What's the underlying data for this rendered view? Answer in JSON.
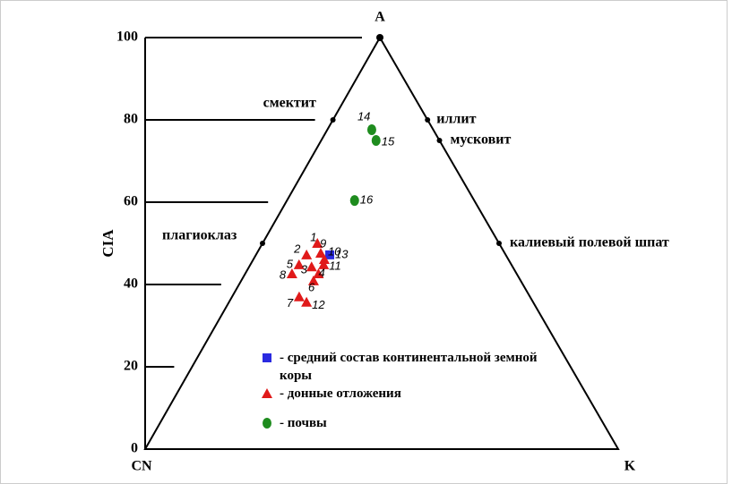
{
  "chart_data": {
    "type": "ternary",
    "vertex_labels": {
      "A": "A",
      "CN": "CN",
      "K": "K"
    },
    "ylabel": "CIA",
    "ylim": [
      0,
      100
    ],
    "yticks": [
      0,
      20,
      40,
      60,
      80,
      100
    ],
    "minerals": [
      {
        "name": "смектит",
        "A": 80,
        "K": 0
      },
      {
        "name": "иллит",
        "A": 80,
        "K": 20
      },
      {
        "name": "мусковит",
        "A": 75,
        "K": 25
      },
      {
        "name": "калиевый полевой шпат",
        "A": 50,
        "K": 50
      },
      {
        "name": "плагиоклаз",
        "A": 50,
        "K": 0
      }
    ],
    "series": [
      {
        "name": "- средний состав континентальной земной коры",
        "color": "#2a2ae0",
        "marker": "square",
        "points": [
          {
            "label": "13",
            "A": 47.2,
            "K": 15.6
          }
        ]
      },
      {
        "name": "- донные отложения",
        "color": "#e01a1a",
        "marker": "triangle",
        "points": [
          {
            "label": "1",
            "A": 50.0,
            "K": 11.6
          },
          {
            "label": "2",
            "A": 47.2,
            "K": 10.7
          },
          {
            "label": "9",
            "A": 47.6,
            "K": 13.5
          },
          {
            "label": "10",
            "A": 46.1,
            "K": 15.0
          },
          {
            "label": "5",
            "A": 44.8,
            "K": 10.3
          },
          {
            "label": "3",
            "A": 44.3,
            "K": 13.2
          },
          {
            "label": "11",
            "A": 44.8,
            "K": 15.5
          },
          {
            "label": "8",
            "A": 42.6,
            "K": 9.9
          },
          {
            "label": "4",
            "A": 42.6,
            "K": 15.5
          },
          {
            "label": "6",
            "A": 40.9,
            "K": 15.3
          },
          {
            "label": "7",
            "A": 37.0,
            "K": 14.2
          },
          {
            "label": "12",
            "A": 35.7,
            "K": 16.4
          }
        ]
      },
      {
        "name": "- почвы",
        "color": "#1e8c1e",
        "marker": "circle",
        "points": [
          {
            "label": "14",
            "A": 77.6,
            "K": 9.4
          },
          {
            "label": "15",
            "A": 75.0,
            "K": 11.6
          },
          {
            "label": "16",
            "A": 60.4,
            "K": 14.3
          }
        ]
      }
    ]
  }
}
